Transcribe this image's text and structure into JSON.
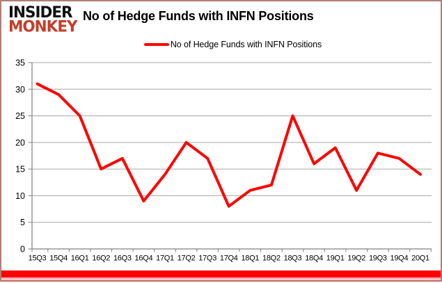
{
  "branding": {
    "logo_line1": "INSIDER",
    "logo_line2": "MONKEY",
    "logo_secondary_color": "#c43e2a"
  },
  "header": {
    "title": "No of Hedge Funds with INFN Positions"
  },
  "legend": {
    "label": "No of Hedge Funds with INFN Positions",
    "swatch_color": "#ff0000"
  },
  "chart_data": {
    "type": "line",
    "title": "No of Hedge Funds with INFN Positions",
    "series_name": "No of Hedge Funds with INFN Positions",
    "categories": [
      "15Q3",
      "15Q4",
      "16Q1",
      "16Q2",
      "16Q3",
      "16Q4",
      "17Q1",
      "17Q2",
      "17Q3",
      "17Q4",
      "18Q1",
      "18Q2",
      "18Q3",
      "18Q4",
      "19Q1",
      "19Q2",
      "19Q3",
      "19Q4",
      "20Q1"
    ],
    "values": [
      31,
      29,
      25,
      15,
      17,
      9,
      14,
      20,
      17,
      8,
      11,
      12,
      25,
      16,
      19,
      11,
      18,
      17,
      14
    ],
    "xlabel": "",
    "ylabel": "",
    "ylim": [
      0,
      35
    ],
    "yticks": [
      0,
      5,
      10,
      15,
      20,
      25,
      30,
      35
    ],
    "grid": "horizontal",
    "legend_position": "top-center",
    "line_color": "#ff0000",
    "grid_color": "#a6a6a6",
    "axis_color": "#808080",
    "accent_bar_color": "#ff0000"
  }
}
